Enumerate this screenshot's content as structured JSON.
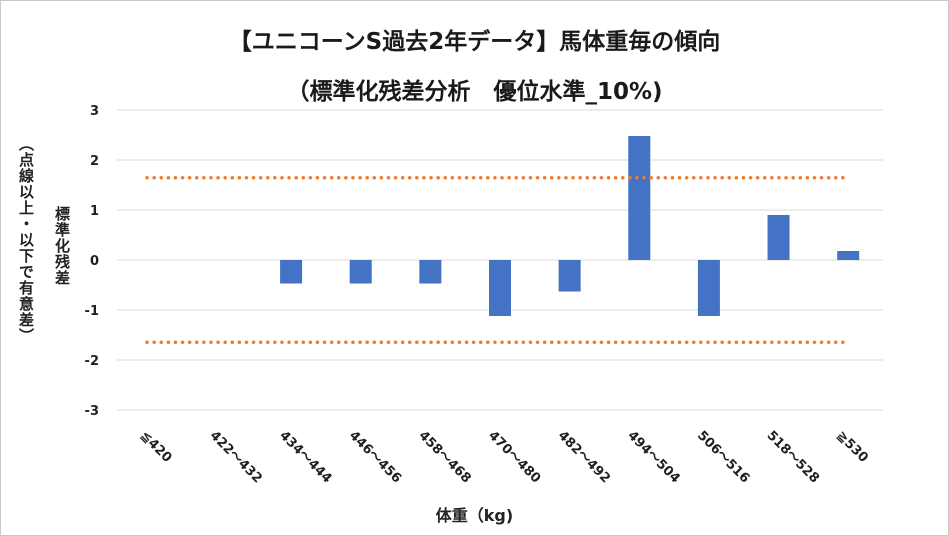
{
  "chart_data": {
    "type": "bar",
    "title_line1": "【ユニコーンS過去2年データ】馬体重毎の傾向",
    "title_line2": "（標準化残差分析　優位水準_10%)",
    "xlabel": "体重（kg)",
    "ylabel": "標準化残差",
    "ylabel_note": "（点線以上・以下で有意差）",
    "categories": [
      "≦420",
      "422～432",
      "434～444",
      "446～456",
      "458～468",
      "470～480",
      "482～492",
      "494～504",
      "506～516",
      "518～528",
      "≧530"
    ],
    "values": [
      0,
      0,
      -0.47,
      -0.47,
      -0.47,
      -1.12,
      -0.63,
      2.48,
      -1.12,
      0.9,
      0.18
    ],
    "ylim": [
      -3,
      3
    ],
    "yticks": [
      "3",
      "2",
      "1",
      "0",
      "-1",
      "-2",
      "-3"
    ],
    "threshold": 1.645,
    "grid": true,
    "colors": {
      "bar": "#4472C4",
      "threshold": "#ED7D31",
      "grid": "#d9d9d9"
    }
  }
}
